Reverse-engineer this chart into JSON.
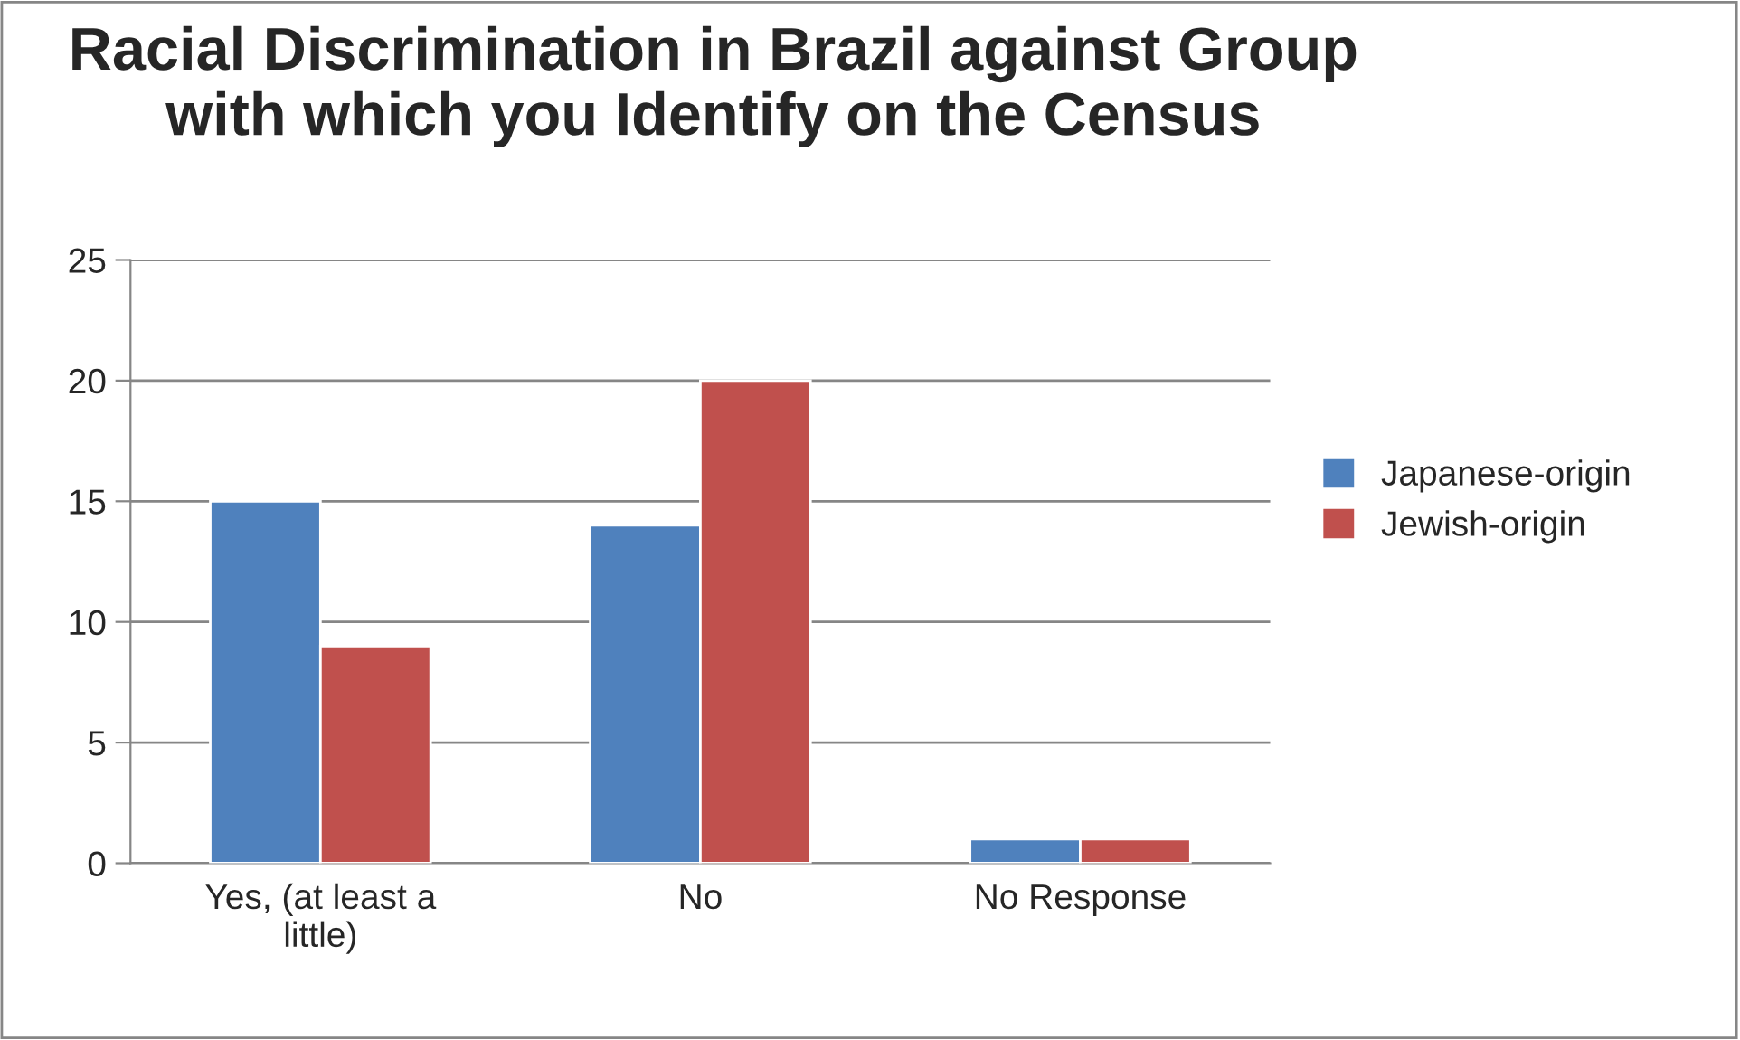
{
  "chart_data": {
    "type": "bar",
    "title": "Racial Discrimination in Brazil against Group with which you Identify on the Census",
    "categories": [
      "Yes, (at least a little)",
      "No",
      "No Response"
    ],
    "series": [
      {
        "name": "Japanese-origin",
        "color": "#4f81bd",
        "values": [
          15,
          14,
          1
        ]
      },
      {
        "name": "Jewish-origin",
        "color": "#c0504d",
        "values": [
          9,
          20,
          1
        ]
      }
    ],
    "ylim": [
      0,
      25
    ],
    "yticks": [
      0,
      5,
      10,
      15,
      20,
      25
    ],
    "grid": "y",
    "legend": "right"
  }
}
